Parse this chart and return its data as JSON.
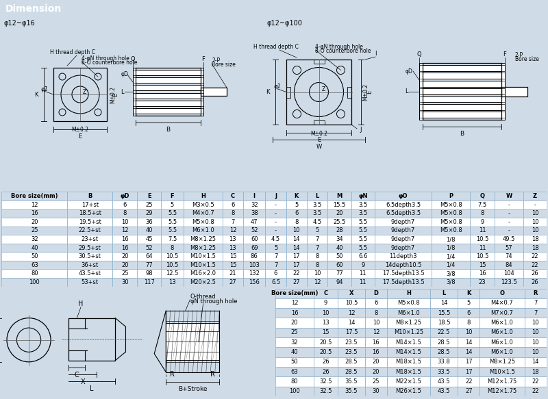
{
  "title": "Dimension",
  "title_bg": "#6d6d6d",
  "title_color": "#ffffff",
  "bg_color": "#cfdce8",
  "table_bg_even": "#cfdce8",
  "table_bg_odd": "#ffffff",
  "table_header_bg": "#cfdce8",
  "border_color": "#8aafcc",
  "diagram_note_small": "φ12~φ16",
  "diagram_note_large": "φ12~φ100",
  "main_table_headers": [
    "Bore size(mm)",
    "B",
    "φD",
    "E",
    "F",
    "H",
    "C",
    "I",
    "J",
    "K",
    "L",
    "M",
    "φN",
    "φO",
    "P",
    "Q",
    "W",
    "Z"
  ],
  "main_table_rows": [
    [
      "12",
      "17+st",
      "6",
      "25",
      "5",
      "M3×0.5",
      "6",
      "32",
      "-",
      "5",
      "3.5",
      "15.5",
      "3.5",
      "6.5depth3.5",
      "M5×0.8",
      "7.5",
      "-",
      "-"
    ],
    [
      "16",
      "18.5+st",
      "8",
      "29",
      "5.5",
      "M4×0.7",
      "8",
      "38",
      "-",
      "6",
      "3.5",
      "20",
      "3.5",
      "6.5depth3.5",
      "M5×0.8",
      "8",
      "-",
      "10"
    ],
    [
      "20",
      "19.5+st",
      "10",
      "36",
      "5.5",
      "M5×0.8",
      "7",
      "47",
      "-",
      "8",
      "4.5",
      "25.5",
      "5.5",
      "9depth7",
      "M5×0.8",
      "9",
      "-",
      "10"
    ],
    [
      "25",
      "22.5+st",
      "12",
      "40",
      "5.5",
      "M6×1.0",
      "12",
      "52",
      "-",
      "10",
      "5",
      "28",
      "5.5",
      "9depth7",
      "M5×0.8",
      "11",
      "-",
      "10"
    ],
    [
      "32",
      "23+st",
      "16",
      "45",
      "7.5",
      "M8×1.25",
      "13",
      "60",
      "4.5",
      "14",
      "7",
      "34",
      "5.5",
      "9depth7",
      "1/8",
      "10.5",
      "49.5",
      "18"
    ],
    [
      "40",
      "29.5+st",
      "16",
      "52",
      "8",
      "M8×1.25",
      "13",
      "69",
      "5",
      "14",
      "7",
      "40",
      "5.5",
      "9depth7",
      "1/8",
      "11",
      "57",
      "18"
    ],
    [
      "50",
      "30.5+st",
      "20",
      "64",
      "10.5",
      "M10×1.5",
      "15",
      "86",
      "7",
      "17",
      "8",
      "50",
      "6.6",
      "11depth3",
      "1/4",
      "10.5",
      "74",
      "22"
    ],
    [
      "63",
      "36+st",
      "20",
      "77",
      "10.5",
      "M10×1.5",
      "15",
      "103",
      "7",
      "17",
      "8",
      "60",
      "9",
      "14depth10.5",
      "1/4",
      "15",
      "84",
      "22"
    ],
    [
      "80",
      "43.5+st",
      "25",
      "98",
      "12.5",
      "M16×2.0",
      "21",
      "132",
      "6",
      "22",
      "10",
      "77",
      "11",
      "17.5depth13.5",
      "3/8",
      "16",
      "104",
      "26"
    ],
    [
      "100",
      "53+st",
      "30",
      "117",
      "13",
      "M20×2.5",
      "27",
      "156",
      "6.5",
      "27",
      "12",
      "94",
      "11",
      "17.5depth13.5",
      "3/8",
      "23",
      "123.5",
      "26"
    ]
  ],
  "second_table_headers": [
    "Bore size(mm)",
    "C",
    "X",
    "D",
    "H",
    "L",
    "K",
    "O",
    "R"
  ],
  "second_table_rows": [
    [
      "12",
      "9",
      "10.5",
      "6",
      "M5×0.8",
      "14",
      "5",
      "M4×0.7",
      "7"
    ],
    [
      "16",
      "10",
      "12",
      "8",
      "M6×1.0",
      "15.5",
      "6",
      "M7×0.7",
      "7"
    ],
    [
      "20",
      "13",
      "14",
      "10",
      "M8×1.25",
      "18.5",
      "8",
      "M6×1.0",
      "10"
    ],
    [
      "25",
      "15",
      "17.5",
      "12",
      "M10×1.25",
      "22.5",
      "10",
      "M6×1.0",
      "10"
    ],
    [
      "32",
      "20.5",
      "23.5",
      "16",
      "M14×1.5",
      "28.5",
      "14",
      "M6×1.0",
      "10"
    ],
    [
      "40",
      "20.5",
      "23.5",
      "16",
      "M14×1.5",
      "28.5",
      "14",
      "M6×1.0",
      "10"
    ],
    [
      "50",
      "26",
      "28.5",
      "20",
      "M18×1.5",
      "33.8",
      "17",
      "M8×1.25",
      "14"
    ],
    [
      "63",
      "26",
      "28.5",
      "20",
      "M18×1.5",
      "33.5",
      "17",
      "M10×1.5",
      "18"
    ],
    [
      "80",
      "32.5",
      "35.5",
      "25",
      "M22×1.5",
      "43.5",
      "22",
      "M12×1.75",
      "22"
    ],
    [
      "100",
      "32.5",
      "35.5",
      "30",
      "M26×1.5",
      "43.5",
      "27",
      "M12×1.75",
      "22"
    ]
  ]
}
